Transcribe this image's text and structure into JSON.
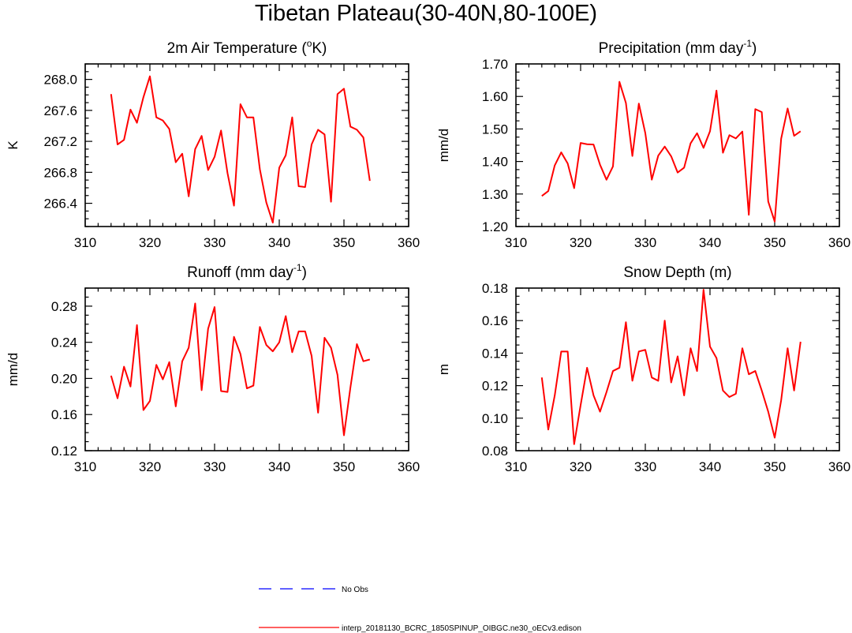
{
  "figure": {
    "title": "Tibetan Plateau(30-40N,80-100E)",
    "colors": {
      "model": "#ff0000",
      "obs": "#0000ff",
      "axis": "#000000"
    },
    "legend": {
      "obs_label": "No Obs",
      "model_label": "interp_20181130_BCRC_1850SPINUP_OIBGC.ne30_oECv3.edison"
    }
  },
  "chart_data": [
    {
      "type": "line",
      "title_main": "2m Air Temperature (",
      "title_sup": "o",
      "title_end": "K)",
      "ylabel": "K",
      "xlabel": "",
      "xlim": [
        310,
        360
      ],
      "ylim": [
        266.1,
        268.2
      ],
      "xticks": [
        310,
        320,
        330,
        340,
        350,
        360
      ],
      "xtick_labels": [
        "310",
        "320",
        "330",
        "340",
        "350",
        "360"
      ],
      "yticks": [
        266.4,
        266.8,
        267.2,
        267.6,
        268.0
      ],
      "ytick_labels": [
        "266.4",
        "266.8",
        "267.2",
        "267.6",
        "268.0"
      ],
      "series": [
        {
          "name": "interp_20181130_BCRC_1850SPINUP_OIBGC.ne30_oECv3.edison",
          "x": [
            314,
            315,
            316,
            317,
            318,
            319,
            320,
            321,
            322,
            323,
            324,
            325,
            326,
            327,
            328,
            329,
            330,
            331,
            332,
            333,
            334,
            335,
            336,
            337,
            338,
            339,
            340,
            341,
            342,
            343,
            344,
            345,
            346,
            347,
            348,
            349,
            350,
            351,
            352,
            353,
            354
          ],
          "values": [
            267.81,
            267.16,
            267.22,
            267.61,
            267.44,
            267.77,
            268.04,
            267.51,
            267.47,
            267.36,
            266.93,
            267.04,
            266.49,
            267.1,
            267.27,
            266.83,
            267.0,
            267.34,
            266.79,
            266.37,
            267.68,
            267.51,
            267.51,
            266.84,
            266.41,
            266.15,
            266.86,
            267.02,
            267.51,
            266.62,
            266.61,
            267.16,
            267.35,
            267.29,
            266.42,
            267.81,
            267.88,
            267.39,
            267.35,
            267.25,
            266.69
          ]
        }
      ]
    },
    {
      "type": "line",
      "title_main": "Precipitation (mm day",
      "title_sup": "-1",
      "title_end": ")",
      "ylabel": "mm/d",
      "xlabel": "",
      "xlim": [
        310,
        360
      ],
      "ylim": [
        1.2,
        1.7
      ],
      "xticks": [
        310,
        320,
        330,
        340,
        350,
        360
      ],
      "xtick_labels": [
        "310",
        "320",
        "330",
        "340",
        "350",
        "360"
      ],
      "yticks": [
        1.2,
        1.3,
        1.4,
        1.5,
        1.6,
        1.7
      ],
      "ytick_labels": [
        "1.20",
        "1.30",
        "1.40",
        "1.50",
        "1.60",
        "1.70"
      ],
      "series": [
        {
          "name": "interp_20181130_BCRC_1850SPINUP_OIBGC.ne30_oECv3.edison",
          "x": [
            314,
            315,
            316,
            317,
            318,
            319,
            320,
            321,
            322,
            323,
            324,
            325,
            326,
            327,
            328,
            329,
            330,
            331,
            332,
            333,
            334,
            335,
            336,
            337,
            338,
            339,
            340,
            341,
            342,
            343,
            344,
            345,
            346,
            347,
            348,
            349,
            350,
            351,
            352,
            353,
            354
          ],
          "values": [
            1.294,
            1.309,
            1.388,
            1.428,
            1.394,
            1.318,
            1.457,
            1.453,
            1.452,
            1.39,
            1.344,
            1.385,
            1.645,
            1.58,
            1.417,
            1.578,
            1.487,
            1.344,
            1.418,
            1.446,
            1.416,
            1.366,
            1.381,
            1.456,
            1.487,
            1.442,
            1.493,
            1.618,
            1.427,
            1.481,
            1.471,
            1.492,
            1.236,
            1.561,
            1.552,
            1.277,
            1.215,
            1.47,
            1.563,
            1.479,
            1.493
          ]
        }
      ]
    },
    {
      "type": "line",
      "title_main": "Runoff (mm day",
      "title_sup": "-1",
      "title_end": ")",
      "ylabel": "mm/d",
      "xlabel": "",
      "xlim": [
        310,
        360
      ],
      "ylim": [
        0.12,
        0.3
      ],
      "xticks": [
        310,
        320,
        330,
        340,
        350,
        360
      ],
      "xtick_labels": [
        "310",
        "320",
        "330",
        "340",
        "350",
        "360"
      ],
      "yticks": [
        0.12,
        0.16,
        0.2,
        0.24,
        0.28
      ],
      "ytick_labels": [
        "0.12",
        "0.16",
        "0.20",
        "0.24",
        "0.28"
      ],
      "series": [
        {
          "name": "interp_20181130_BCRC_1850SPINUP_OIBGC.ne30_oECv3.edison",
          "x": [
            314,
            315,
            316,
            317,
            318,
            319,
            320,
            321,
            322,
            323,
            324,
            325,
            326,
            327,
            328,
            329,
            330,
            331,
            332,
            333,
            334,
            335,
            336,
            337,
            338,
            339,
            340,
            341,
            342,
            343,
            344,
            345,
            346,
            347,
            348,
            349,
            350,
            351,
            352,
            353,
            354
          ],
          "values": [
            0.203,
            0.178,
            0.213,
            0.191,
            0.259,
            0.165,
            0.175,
            0.215,
            0.199,
            0.218,
            0.169,
            0.219,
            0.234,
            0.283,
            0.187,
            0.255,
            0.279,
            0.186,
            0.185,
            0.246,
            0.227,
            0.189,
            0.192,
            0.257,
            0.237,
            0.23,
            0.24,
            0.269,
            0.229,
            0.252,
            0.252,
            0.225,
            0.162,
            0.245,
            0.234,
            0.204,
            0.137,
            0.19,
            0.238,
            0.219,
            0.221
          ]
        }
      ]
    },
    {
      "type": "line",
      "title_main": "Snow Depth (m)",
      "title_sup": "",
      "title_end": "",
      "ylabel": "m",
      "xlabel": "",
      "xlim": [
        310,
        360
      ],
      "ylim": [
        0.08,
        0.18
      ],
      "xticks": [
        310,
        320,
        330,
        340,
        350,
        360
      ],
      "xtick_labels": [
        "310",
        "320",
        "330",
        "340",
        "350",
        "360"
      ],
      "yticks": [
        0.08,
        0.1,
        0.12,
        0.14,
        0.16,
        0.18
      ],
      "ytick_labels": [
        "0.08",
        "0.10",
        "0.12",
        "0.14",
        "0.16",
        "0.18"
      ],
      "series": [
        {
          "name": "interp_20181130_BCRC_1850SPINUP_OIBGC.ne30_oECv3.edison",
          "x": [
            314,
            315,
            316,
            317,
            318,
            319,
            320,
            321,
            322,
            323,
            324,
            325,
            326,
            327,
            328,
            329,
            330,
            331,
            332,
            333,
            334,
            335,
            336,
            337,
            338,
            339,
            340,
            341,
            342,
            343,
            344,
            345,
            346,
            347,
            348,
            349,
            350,
            351,
            352,
            353,
            354
          ],
          "values": [
            0.125,
            0.093,
            0.114,
            0.141,
            0.141,
            0.084,
            0.108,
            0.131,
            0.114,
            0.104,
            0.116,
            0.129,
            0.131,
            0.159,
            0.123,
            0.141,
            0.142,
            0.125,
            0.123,
            0.16,
            0.122,
            0.138,
            0.114,
            0.143,
            0.129,
            0.179,
            0.144,
            0.137,
            0.117,
            0.113,
            0.115,
            0.143,
            0.127,
            0.129,
            0.117,
            0.104,
            0.088,
            0.111,
            0.143,
            0.117,
            0.147
          ]
        }
      ]
    }
  ]
}
